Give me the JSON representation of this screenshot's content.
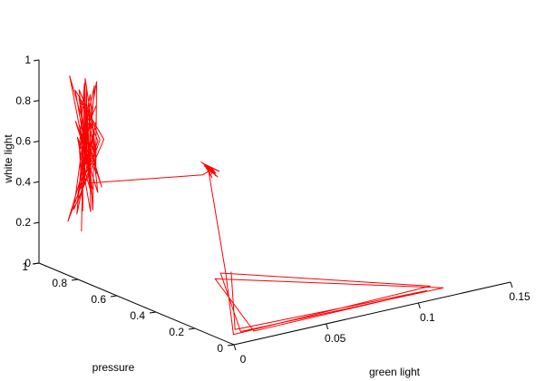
{
  "chart_data": {
    "type": "line",
    "projection": "3d",
    "grid": false,
    "line_color": "#ff0000",
    "axis_color": "#000000",
    "axes": {
      "x": {
        "label": "green light",
        "lim": [
          0,
          0.15
        ],
        "ticks": [
          0,
          0.05,
          0.1,
          0.15
        ],
        "tick_labels": [
          "0",
          "0.05",
          "0.1",
          "0.15"
        ]
      },
      "y": {
        "label": "pressure",
        "lim": [
          0,
          1
        ],
        "ticks": [
          0,
          0.2,
          0.4,
          0.6,
          0.8,
          1
        ],
        "tick_labels": [
          "0",
          "0.2",
          "0.4",
          "0.6",
          "0.8",
          "1"
        ]
      },
      "z": {
        "label": "white light",
        "lim": [
          0,
          1
        ],
        "ticks": [
          0,
          0.2,
          0.4,
          0.6,
          0.8,
          1
        ],
        "tick_labels": [
          "0",
          "0.2",
          "0.4",
          "0.6",
          "0.8",
          "1"
        ]
      }
    },
    "series": [
      {
        "points": [
          [
            0.004,
            0.82,
            0.22
          ],
          [
            0.008,
            0.85,
            0.55
          ],
          [
            0.012,
            0.88,
            0.91
          ],
          [
            0.005,
            0.84,
            0.63
          ],
          [
            0.011,
            0.81,
            0.83
          ],
          [
            0.016,
            0.86,
            0.47
          ],
          [
            0.009,
            0.79,
            0.96
          ],
          [
            0.007,
            0.87,
            0.36
          ],
          [
            0.013,
            0.83,
            0.74
          ],
          [
            0.01,
            0.9,
            0.26
          ],
          [
            0.003,
            0.8,
            0.69
          ],
          [
            0.015,
            0.85,
            0.58
          ],
          [
            0.006,
            0.82,
            0.97
          ],
          [
            0.012,
            0.88,
            0.44
          ],
          [
            0.009,
            0.84,
            0.79
          ],
          [
            0.004,
            0.86,
            0.31
          ],
          [
            0.014,
            0.8,
            0.66
          ],
          [
            0.008,
            0.89,
            0.88
          ],
          [
            0.011,
            0.83,
            0.41
          ],
          [
            0.006,
            0.85,
            0.73
          ],
          [
            0.013,
            0.87,
            0.52
          ],
          [
            0.01,
            0.81,
            0.93
          ],
          [
            0.005,
            0.84,
            0.6
          ],
          [
            0.016,
            0.88,
            0.35
          ],
          [
            0.007,
            0.82,
            0.81
          ],
          [
            0.012,
            0.86,
            0.49
          ],
          [
            0.009,
            0.8,
            0.71
          ],
          [
            0.004,
            0.89,
            0.24
          ],
          [
            0.014,
            0.83,
            0.64
          ],
          [
            0.008,
            0.87,
            0.85
          ],
          [
            0.011,
            0.84,
            0.39
          ],
          [
            0.006,
            0.81,
            0.76
          ],
          [
            0.013,
            0.88,
            0.56
          ],
          [
            0.01,
            0.85,
            0.9
          ],
          [
            0.005,
            0.82,
            0.45
          ],
          [
            0.015,
            0.86,
            0.68
          ],
          [
            0.007,
            0.79,
            0.33
          ],
          [
            0.012,
            0.87,
            0.77
          ],
          [
            0.009,
            0.84,
            0.53
          ],
          [
            0.006,
            0.9,
            0.95
          ],
          [
            0.014,
            0.81,
            0.42
          ],
          [
            0.008,
            0.85,
            0.7
          ],
          [
            0.011,
            0.88,
            0.28
          ],
          [
            0.004,
            0.83,
            0.62
          ],
          [
            0.013,
            0.86,
            0.86
          ],
          [
            0.01,
            0.8,
            0.5
          ],
          [
            0.006,
            0.87,
            0.74
          ],
          [
            0.015,
            0.84,
            0.38
          ],
          [
            0.008,
            0.82,
            0.8
          ],
          [
            0.012,
            0.89,
            0.57
          ],
          [
            0.005,
            0.85,
            0.67
          ],
          [
            0.01,
            0.83,
            0.3
          ],
          [
            0.013,
            0.86,
            0.6
          ],
          [
            0.007,
            0.81,
            0.84
          ],
          [
            0.011,
            0.88,
            0.46
          ],
          [
            0.009,
            0.84,
            0.72
          ],
          [
            0.006,
            0.86,
            0.34
          ],
          [
            0.014,
            0.82,
            0.65
          ],
          [
            0.008,
            0.87,
            0.89
          ],
          [
            0.012,
            0.85,
            0.43
          ],
          [
            0.055,
            0.68,
            0.45
          ],
          [
            0.058,
            0.66,
            0.48
          ],
          [
            0.061,
            0.69,
            0.44
          ],
          [
            0.056,
            0.67,
            0.5
          ],
          [
            0.06,
            0.7,
            0.46
          ],
          [
            0.057,
            0.65,
            0.49
          ],
          [
            0.062,
            0.68,
            0.43
          ],
          [
            0.059,
            0.66,
            0.47
          ],
          [
            0.055,
            0.69,
            0.51
          ],
          [
            0.061,
            0.67,
            0.45
          ],
          [
            0.058,
            0.7,
            0.48
          ],
          [
            0.06,
            0.65,
            0.44
          ],
          [
            0.056,
            0.68,
            0.5
          ],
          [
            0.062,
            0.66,
            0.46
          ],
          [
            0.057,
            0.69,
            0.49
          ],
          [
            0.059,
            0.67,
            0.43
          ],
          [
            0.058,
            0.68,
            0.47
          ],
          [
            0.04,
            0.42,
            0.1
          ],
          [
            0.005,
            0.05,
            0.02
          ],
          [
            0.115,
            0.08,
            0.02
          ],
          [
            0.035,
            0.4,
            0.12
          ],
          [
            0.01,
            0.06,
            0.02
          ],
          [
            0.12,
            0.06,
            0.01
          ],
          [
            0.03,
            0.38,
            0.11
          ],
          [
            0.015,
            0.04,
            0.02
          ],
          [
            0.11,
            0.05,
            0.02
          ],
          [
            0.008,
            0.07,
            0.03
          ],
          [
            0.045,
            0.44,
            0.09
          ]
        ]
      }
    ]
  }
}
